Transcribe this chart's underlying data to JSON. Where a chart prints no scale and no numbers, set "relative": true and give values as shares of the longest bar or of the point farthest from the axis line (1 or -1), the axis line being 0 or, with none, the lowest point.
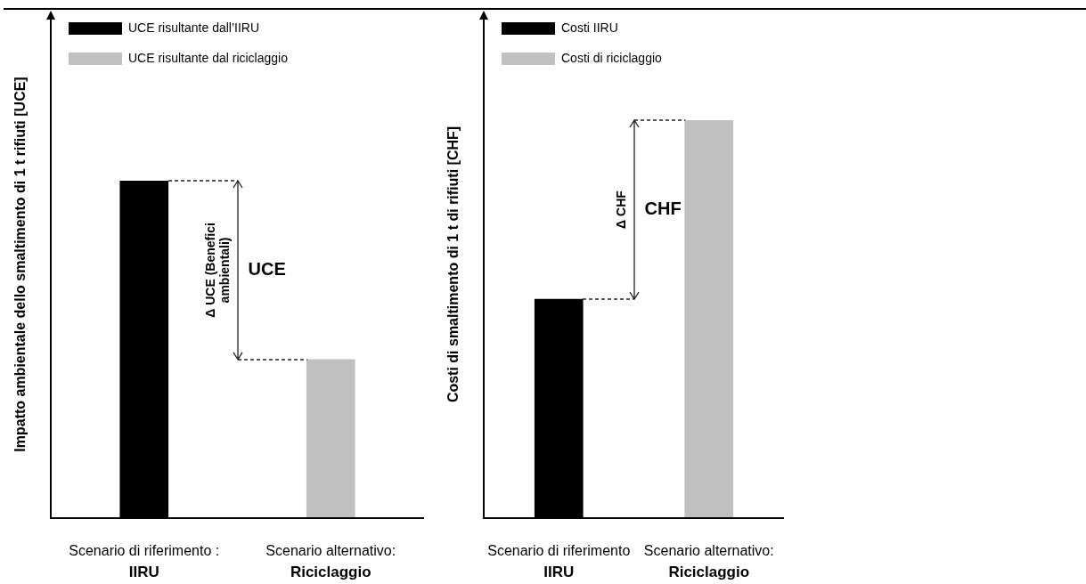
{
  "chart_data": [
    {
      "type": "bar",
      "ylabel": "Impatto ambientale dello smaltimento di 1 t rifiuti [UCE]",
      "categories": [
        "Scenario di riferimento :\nIIRU",
        "Scenario alternativo:\nRiciclaggio"
      ],
      "series": [
        {
          "name": "UCE risultante dall’IIRU",
          "color": "#000000",
          "values": [
            1,
            null
          ]
        },
        {
          "name": "UCE risultante dal riciclaggio",
          "color": "#c0c0c0",
          "values": [
            null,
            0.47
          ]
        }
      ],
      "relative": true,
      "legend": "top left",
      "annotations": [
        "Δ UCE (Benefici ambientali)",
        "UCE"
      ]
    },
    {
      "type": "bar",
      "ylabel": "Costi di smaltimento di 1 t di rifiuti [CHF]",
      "categories": [
        "Scenario di riferimento\nIIRU",
        "Scenario alternativo:\nRiciclaggio"
      ],
      "series": [
        {
          "name": "Costi IIRU",
          "color": "#000000",
          "values": [
            0.55,
            null
          ]
        },
        {
          "name": "Costi di riciclaggio",
          "color": "#c0c0c0",
          "values": [
            null,
            1
          ]
        }
      ],
      "relative": true,
      "legend": "top left",
      "annotations": [
        "Δ CHF",
        "CHF"
      ]
    }
  ]
}
